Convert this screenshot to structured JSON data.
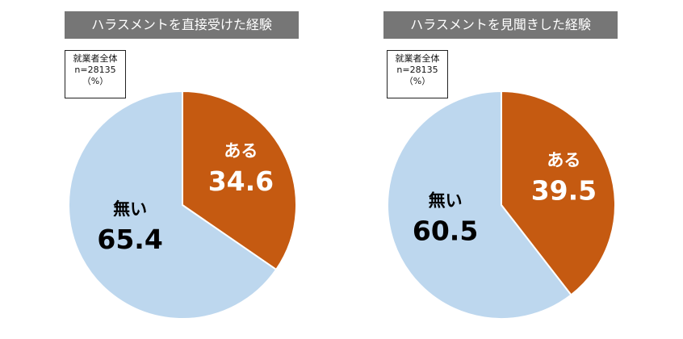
{
  "sample": {
    "line1": "就業者全体",
    "line2": "n=28135",
    "line3": "（%）"
  },
  "colors": {
    "yes": "#C55A11",
    "no": "#BDD7EE",
    "title_bg": "#767676"
  },
  "chart_data": [
    {
      "type": "pie",
      "title": "ハラスメントを直接受けた経験",
      "slices": [
        {
          "label": "ある",
          "value": 34.6,
          "value_text": "34.6",
          "color": "#C55A11",
          "label_color": "#ffffff"
        },
        {
          "label": "無い",
          "value": 65.4,
          "value_text": "65.4",
          "color": "#BDD7EE",
          "label_color": "#000000"
        }
      ]
    },
    {
      "type": "pie",
      "title": "ハラスメントを見聞きした経験",
      "slices": [
        {
          "label": "ある",
          "value": 39.5,
          "value_text": "39.5",
          "color": "#C55A11",
          "label_color": "#ffffff"
        },
        {
          "label": "無い",
          "value": 60.5,
          "value_text": "60.5",
          "color": "#BDD7EE",
          "label_color": "#000000"
        }
      ]
    }
  ]
}
